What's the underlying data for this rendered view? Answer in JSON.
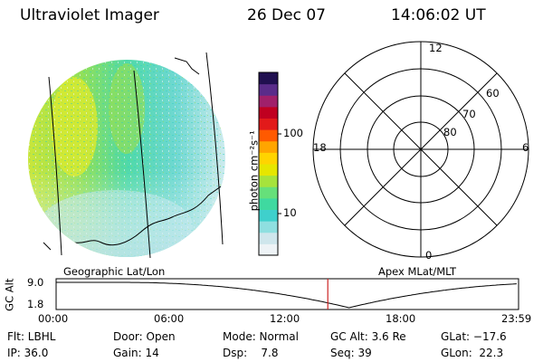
{
  "header": {
    "title": "Ultraviolet Imager",
    "date": "26 Dec 07",
    "time": "14:06:02 UT"
  },
  "colorbar": {
    "unit_label": "photon cm⁻²s⁻¹",
    "ticks": [
      "100",
      "10"
    ],
    "colors": [
      "#eef3f6",
      "#cfe6ec",
      "#8fdfe0",
      "#3fd0cc",
      "#3fd9a0",
      "#66e07a",
      "#a6e33c",
      "#e6e600",
      "#ffd400",
      "#ffa500",
      "#ff5a00",
      "#e21a1a",
      "#c00020",
      "#a0206a",
      "#5a2c8a",
      "#201050"
    ]
  },
  "polar": {
    "lat_labels": [
      "60",
      "70",
      "80"
    ],
    "mlt_labels": {
      "top": "12",
      "bottom": "0",
      "left": "18",
      "right": "6"
    }
  },
  "altitude_plot": {
    "left_label": "Geographic Lat/Lon",
    "right_label": "Apex MLat/MLT",
    "axis_title": "GC Alt",
    "y_ticks": [
      "9.0",
      "1.8"
    ],
    "x_ticks": [
      "00:00",
      "06:00",
      "12:00",
      "18:00",
      "23:59"
    ],
    "current_time_hours": 14.1,
    "marker_color": "#cc2222"
  },
  "status": {
    "flt": "Flt: LBHL",
    "ip": "IP: 36.0",
    "door": "Door: Open",
    "gain": "Gain: 14",
    "mode": "Mode: Normal",
    "dsp": "Dsp:    7.8",
    "gcalt": "GC Alt: 3.6 Re",
    "seq": "Seq: 39",
    "glat": "GLat: −17.6",
    "glon": "GLon:  22.3"
  }
}
